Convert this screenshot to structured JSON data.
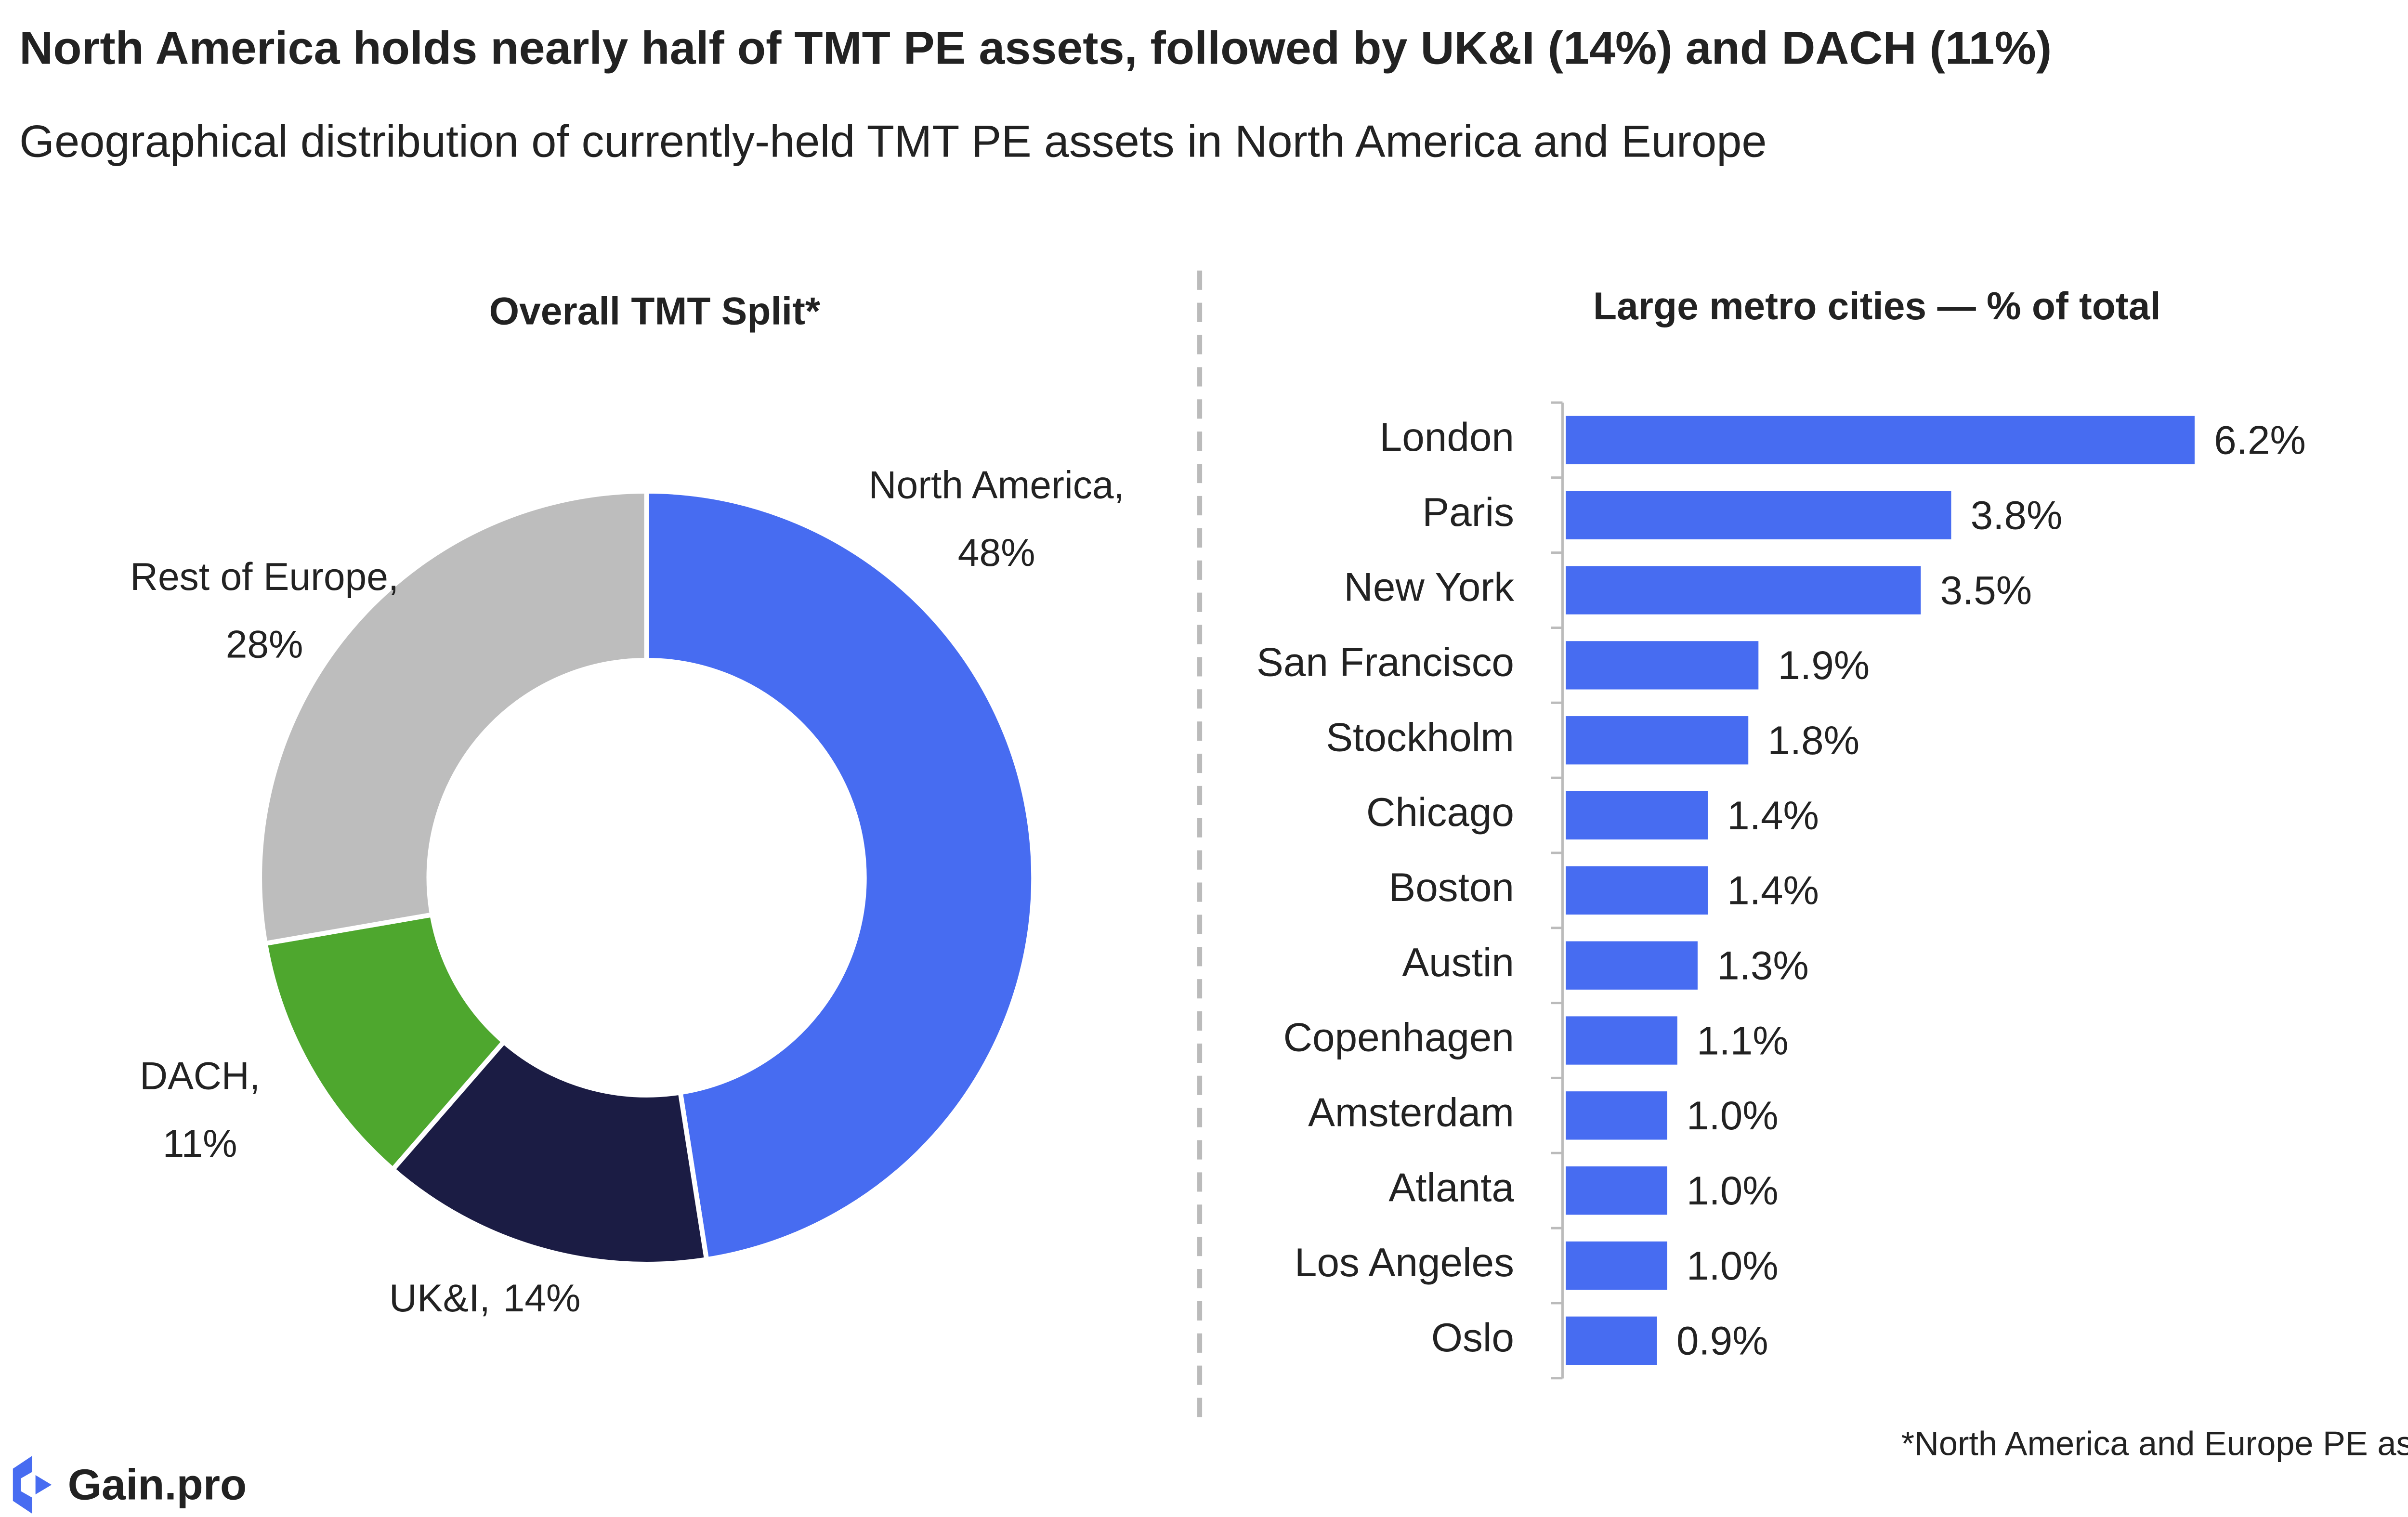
{
  "title": "North America holds nearly half of TMT PE assets, followed by UK&I (14%) and DACH (11%)",
  "subtitle": "Geographical distribution of currently-held TMT PE assets in North America and Europe",
  "note": "*North America and Europe PE assets",
  "logo": "Gain.pro",
  "chart_data": [
    {
      "type": "donut",
      "title": "Overall TMT Split*",
      "categories": [
        "North America,",
        "UK&I,",
        "DACH,",
        "Rest of Europe,"
      ],
      "values": [
        48,
        14,
        11,
        28
      ],
      "value_labels": [
        "48%",
        "14%",
        "11%",
        "28%"
      ],
      "colors": [
        "#476cf1",
        "#1b1c44",
        "#4ea72e",
        "#bdbdbd"
      ]
    },
    {
      "type": "hbar",
      "title": "Large metro cities — % of total",
      "categories": [
        "London",
        "Paris",
        "New York",
        "San Francisco",
        "Stockholm",
        "Chicago",
        "Boston",
        "Austin",
        "Copenhagen",
        "Amsterdam",
        "Atlanta",
        "Los Angeles",
        "Oslo"
      ],
      "values": [
        6.2,
        3.8,
        3.5,
        1.9,
        1.8,
        1.4,
        1.4,
        1.3,
        1.1,
        1.0,
        1.0,
        1.0,
        0.9
      ],
      "value_labels": [
        "6.2%",
        "3.8%",
        "3.5%",
        "1.9%",
        "1.8%",
        "1.4%",
        "1.4%",
        "1.3%",
        "1.1%",
        "1.0%",
        "1.0%",
        "1.0%",
        "0.9%"
      ],
      "color": "#476cf1"
    }
  ]
}
